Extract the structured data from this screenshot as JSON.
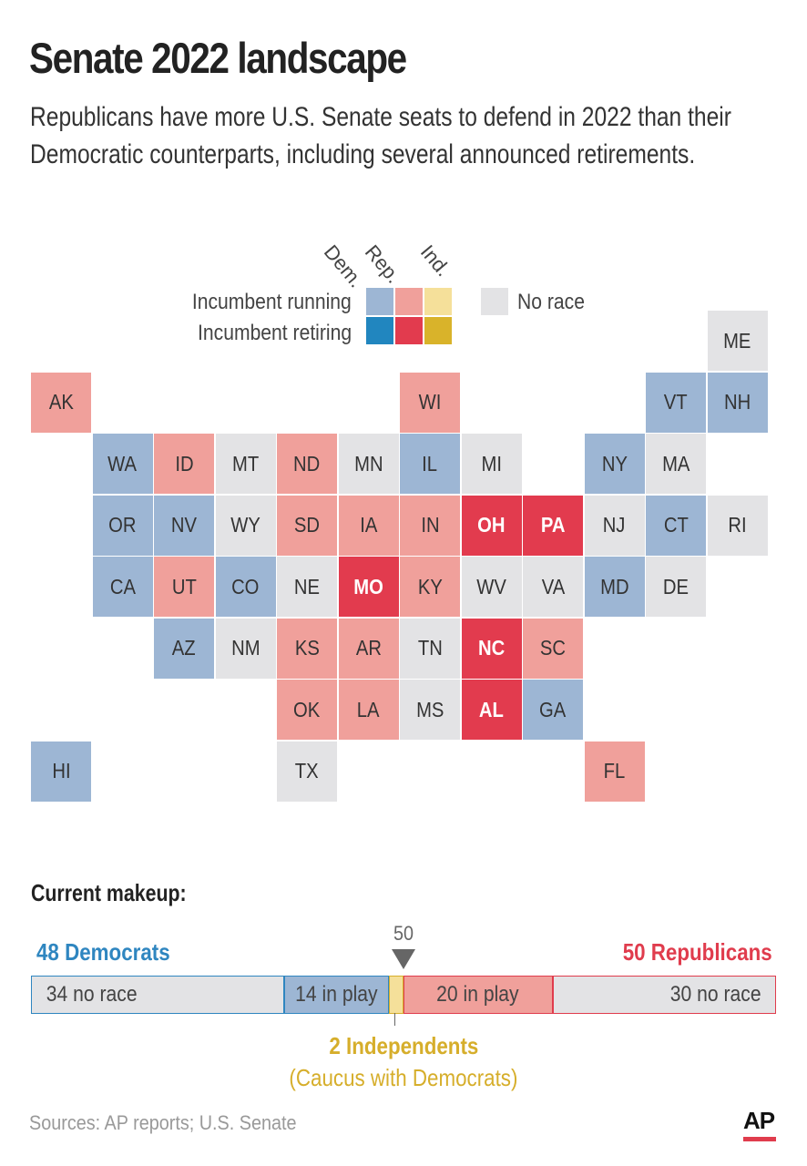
{
  "title": "Senate 2022 landscape",
  "subtitle": "Republicans have more U.S. Senate seats to defend in 2022 than their Democratic counterparts, including several announced retirements.",
  "legend": {
    "column_heads": [
      "Dem.",
      "Rep.",
      "Ind."
    ],
    "row_running": "Incumbent running",
    "row_retiring": "Incumbent retiring",
    "no_race": "No race"
  },
  "colors": {
    "dem_running": "#9db6d4",
    "dem_retiring": "#2186bf",
    "rep_running": "#f0a09b",
    "rep_retiring": "#e23b4e",
    "ind_running": "#f5e09a",
    "ind_retiring": "#d9b32a",
    "no_race": "#e3e3e5"
  },
  "states": [
    {
      "abbr": "ME",
      "status": "no_race",
      "col": 11,
      "row": 0
    },
    {
      "abbr": "AK",
      "status": "rep_running",
      "col": 0,
      "row": 1
    },
    {
      "abbr": "WI",
      "status": "rep_running",
      "col": 6,
      "row": 1
    },
    {
      "abbr": "VT",
      "status": "dem_running",
      "col": 10,
      "row": 1
    },
    {
      "abbr": "NH",
      "status": "dem_running",
      "col": 11,
      "row": 1
    },
    {
      "abbr": "WA",
      "status": "dem_running",
      "col": 1,
      "row": 2
    },
    {
      "abbr": "ID",
      "status": "rep_running",
      "col": 2,
      "row": 2
    },
    {
      "abbr": "MT",
      "status": "no_race",
      "col": 3,
      "row": 2
    },
    {
      "abbr": "ND",
      "status": "rep_running",
      "col": 4,
      "row": 2
    },
    {
      "abbr": "MN",
      "status": "no_race",
      "col": 5,
      "row": 2
    },
    {
      "abbr": "IL",
      "status": "dem_running",
      "col": 6,
      "row": 2
    },
    {
      "abbr": "MI",
      "status": "no_race",
      "col": 7,
      "row": 2
    },
    {
      "abbr": "NY",
      "status": "dem_running",
      "col": 9,
      "row": 2
    },
    {
      "abbr": "MA",
      "status": "no_race",
      "col": 10,
      "row": 2
    },
    {
      "abbr": "OR",
      "status": "dem_running",
      "col": 1,
      "row": 3
    },
    {
      "abbr": "NV",
      "status": "dem_running",
      "col": 2,
      "row": 3
    },
    {
      "abbr": "WY",
      "status": "no_race",
      "col": 3,
      "row": 3
    },
    {
      "abbr": "SD",
      "status": "rep_running",
      "col": 4,
      "row": 3
    },
    {
      "abbr": "IA",
      "status": "rep_running",
      "col": 5,
      "row": 3
    },
    {
      "abbr": "IN",
      "status": "rep_running",
      "col": 6,
      "row": 3
    },
    {
      "abbr": "OH",
      "status": "rep_retiring",
      "col": 7,
      "row": 3
    },
    {
      "abbr": "PA",
      "status": "rep_retiring",
      "col": 8,
      "row": 3
    },
    {
      "abbr": "NJ",
      "status": "no_race",
      "col": 9,
      "row": 3
    },
    {
      "abbr": "CT",
      "status": "dem_running",
      "col": 10,
      "row": 3
    },
    {
      "abbr": "RI",
      "status": "no_race",
      "col": 11,
      "row": 3
    },
    {
      "abbr": "CA",
      "status": "dem_running",
      "col": 1,
      "row": 4
    },
    {
      "abbr": "UT",
      "status": "rep_running",
      "col": 2,
      "row": 4
    },
    {
      "abbr": "CO",
      "status": "dem_running",
      "col": 3,
      "row": 4
    },
    {
      "abbr": "NE",
      "status": "no_race",
      "col": 4,
      "row": 4
    },
    {
      "abbr": "MO",
      "status": "rep_retiring",
      "col": 5,
      "row": 4
    },
    {
      "abbr": "KY",
      "status": "rep_running",
      "col": 6,
      "row": 4
    },
    {
      "abbr": "WV",
      "status": "no_race",
      "col": 7,
      "row": 4
    },
    {
      "abbr": "VA",
      "status": "no_race",
      "col": 8,
      "row": 4
    },
    {
      "abbr": "MD",
      "status": "dem_running",
      "col": 9,
      "row": 4
    },
    {
      "abbr": "DE",
      "status": "no_race",
      "col": 10,
      "row": 4
    },
    {
      "abbr": "AZ",
      "status": "dem_running",
      "col": 2,
      "row": 5
    },
    {
      "abbr": "NM",
      "status": "no_race",
      "col": 3,
      "row": 5
    },
    {
      "abbr": "KS",
      "status": "rep_running",
      "col": 4,
      "row": 5
    },
    {
      "abbr": "AR",
      "status": "rep_running",
      "col": 5,
      "row": 5
    },
    {
      "abbr": "TN",
      "status": "no_race",
      "col": 6,
      "row": 5
    },
    {
      "abbr": "NC",
      "status": "rep_retiring",
      "col": 7,
      "row": 5
    },
    {
      "abbr": "SC",
      "status": "rep_running",
      "col": 8,
      "row": 5
    },
    {
      "abbr": "OK",
      "status": "rep_running",
      "col": 4,
      "row": 6
    },
    {
      "abbr": "LA",
      "status": "rep_running",
      "col": 5,
      "row": 6
    },
    {
      "abbr": "MS",
      "status": "no_race",
      "col": 6,
      "row": 6
    },
    {
      "abbr": "AL",
      "status": "rep_retiring",
      "col": 7,
      "row": 6
    },
    {
      "abbr": "GA",
      "status": "dem_running",
      "col": 8,
      "row": 6
    },
    {
      "abbr": "HI",
      "status": "dem_running",
      "col": 0,
      "row": 7
    },
    {
      "abbr": "TX",
      "status": "no_race",
      "col": 4,
      "row": 7
    },
    {
      "abbr": "FL",
      "status": "rep_running",
      "col": 9,
      "row": 7
    }
  ],
  "makeup": {
    "title": "Current makeup:",
    "dem_total": "48 Democrats",
    "rep_total": "50 Republicans",
    "majority_label": "50",
    "segments": [
      {
        "label": "34 no race",
        "seats": 34,
        "kind": "dem_no_race"
      },
      {
        "label": "14 in play",
        "seats": 14,
        "kind": "dem_in_play"
      },
      {
        "label": "",
        "seats": 2,
        "kind": "ind"
      },
      {
        "label": "20 in play",
        "seats": 20,
        "kind": "rep_in_play"
      },
      {
        "label": "30 no race",
        "seats": 30,
        "kind": "rep_no_race"
      }
    ],
    "ind_total": "2 Independents",
    "ind_note": "(Caucus with Democrats)"
  },
  "sources": "Sources: AP reports; U.S. Senate",
  "logo": "AP"
}
